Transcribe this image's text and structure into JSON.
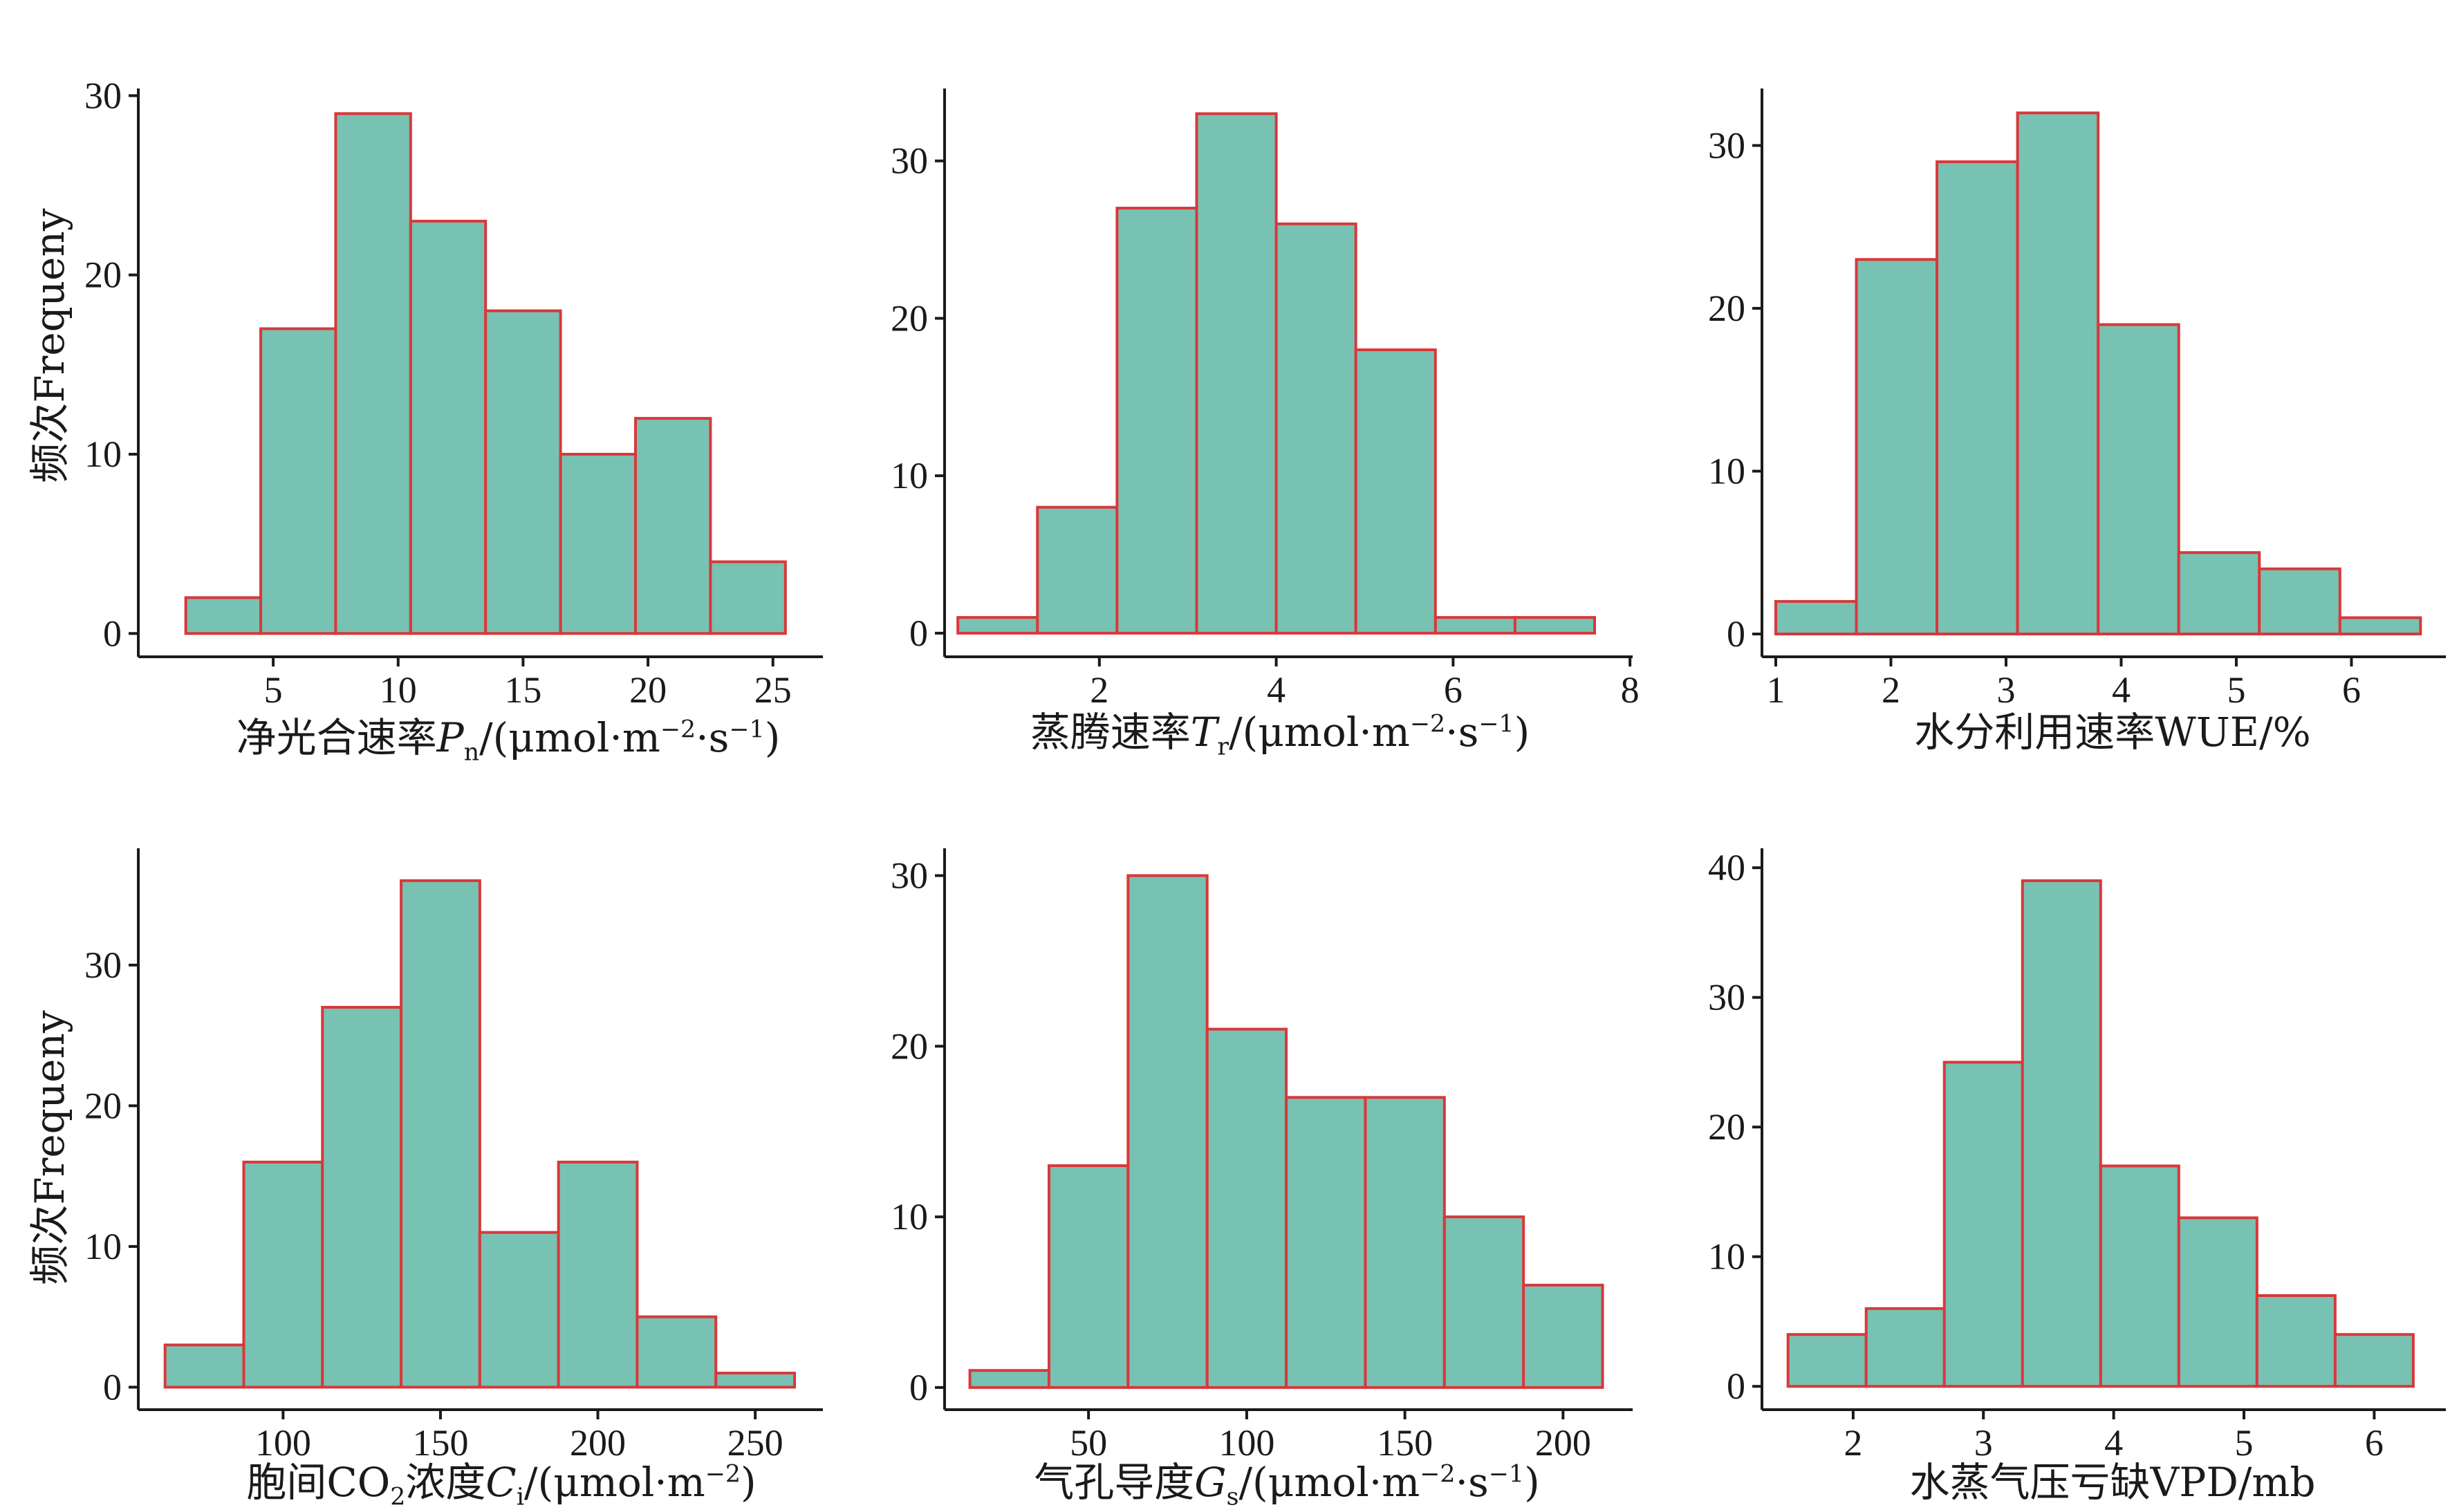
{
  "colors": {
    "bar_fill": "#78c2b4",
    "bar_stroke": "#d9383a",
    "axis": "#1a1a1a"
  },
  "chart_data": [
    {
      "type": "bar",
      "title": "",
      "xlabel": {
        "main": "净光合速率",
        "sym": "P",
        "sub": "n",
        "unit_a": "/(μmol·m",
        "sup1": "−2",
        "unit_b": "·s",
        "sup2": "−1",
        "unit_c": ")"
      },
      "ylabel": "频次Frequeny",
      "categories": [
        "1.5–4.5",
        "4.5–7.5",
        "7.5–10.5",
        "10.5–13.5",
        "13.5–16.5",
        "16.5–19.5",
        "19.5–22.5",
        "22.5–25.5"
      ],
      "bin_edges": [
        1.5,
        4.5,
        7.5,
        10.5,
        13.5,
        16.5,
        19.5,
        22.5,
        25.5
      ],
      "values": [
        2,
        17,
        29,
        23,
        18,
        10,
        12,
        4
      ],
      "xlim": [
        -0.4,
        27
      ],
      "ylim": [
        -1.3,
        30.4
      ],
      "xticks": [
        5,
        10,
        15,
        20,
        25
      ],
      "xtick_labels": [
        "5",
        "10",
        "15",
        "20",
        "25"
      ],
      "yticks": [
        0,
        10,
        20,
        30
      ],
      "ytick_labels": [
        "0",
        "10",
        "20",
        "30"
      ]
    },
    {
      "type": "bar",
      "title": "",
      "xlabel": {
        "main": "蒸腾速率",
        "sym": "T",
        "sub": "r",
        "unit_a": "/(μmol·m",
        "sup1": "−2",
        "unit_b": "·s",
        "sup2": "−1",
        "unit_c": ")"
      },
      "ylabel": "",
      "categories": [
        "0.4–1.3",
        "1.3–2.2",
        "2.2–3.1",
        "3.1–4.0",
        "4.0–4.9",
        "4.9–5.8",
        "5.8–6.7",
        "6.7–7.6"
      ],
      "bin_edges": [
        0.4,
        1.3,
        2.2,
        3.1,
        4.0,
        4.9,
        5.8,
        6.7,
        7.6
      ],
      "values": [
        1,
        8,
        27,
        33,
        26,
        18,
        1,
        1
      ],
      "xlim": [
        0.25,
        8.03
      ],
      "ylim": [
        -1.5,
        34.6
      ],
      "xticks": [
        2,
        4,
        6,
        8
      ],
      "xtick_labels": [
        "2",
        "4",
        "6",
        "8"
      ],
      "yticks": [
        0,
        10,
        20,
        30
      ],
      "ytick_labels": [
        "0",
        "10",
        "20",
        "30"
      ]
    },
    {
      "type": "bar",
      "title": "",
      "xlabel": {
        "main": "水分利用速率WUE/%"
      },
      "ylabel": "",
      "categories": [
        "1.0–1.7",
        "1.7–2.4",
        "2.4–3.1",
        "3.1–3.8",
        "3.8–4.5",
        "4.5–5.2",
        "5.2–5.9",
        "5.9–6.6"
      ],
      "bin_edges": [
        1.0,
        1.7,
        2.4,
        3.1,
        3.8,
        4.5,
        5.2,
        5.9,
        6.6
      ],
      "values": [
        2,
        23,
        29,
        32,
        19,
        5,
        4,
        1
      ],
      "xlim": [
        0.88,
        6.82
      ],
      "ylim": [
        -1.4,
        33.5
      ],
      "xticks": [
        1,
        2,
        3,
        4,
        5,
        6
      ],
      "xtick_labels": [
        "1",
        "2",
        "3",
        "4",
        "5",
        "6"
      ],
      "yticks": [
        0,
        10,
        20,
        30
      ],
      "ytick_labels": [
        "0",
        "10",
        "20",
        "30"
      ]
    },
    {
      "type": "bar",
      "title": "",
      "xlabel": {
        "main": "胞间CO",
        "sub0": "2",
        "main2": "浓度",
        "sym": "C",
        "sub": "i",
        "unit_a": "/(μmol·m",
        "sup1": "−2",
        "unit_c": ")"
      },
      "ylabel": "频次Frequeny",
      "categories": [
        "62.5–87.5",
        "87.5–112.5",
        "112.5–137.5",
        "137.5–162.5",
        "162.5–187.5",
        "187.5–212.5",
        "212.5–237.5",
        "237.5–262.5"
      ],
      "bin_edges": [
        62.5,
        87.5,
        112.5,
        137.5,
        162.5,
        187.5,
        212.5,
        237.5,
        262.5
      ],
      "values": [
        3,
        16,
        27,
        36,
        11,
        16,
        5,
        1
      ],
      "xlim": [
        54,
        271.5
      ],
      "ylim": [
        -1.6,
        38.3
      ],
      "xticks": [
        100,
        150,
        200,
        250
      ],
      "xtick_labels": [
        "100",
        "150",
        "200",
        "250"
      ],
      "yticks": [
        0,
        10,
        20,
        30
      ],
      "ytick_labels": [
        "0",
        "10",
        "20",
        "30"
      ]
    },
    {
      "type": "bar",
      "title": "",
      "xlabel": {
        "main": "气孔导度",
        "sym": "G",
        "sub": "s",
        "unit_a": "/(μmol·m",
        "sup1": "−2",
        "unit_b": "·s",
        "sup2": "−1",
        "unit_c": ")"
      },
      "ylabel": "",
      "categories": [
        "12.5–37.5",
        "37.5–62.5",
        "62.5–87.5",
        "87.5–112.5",
        "112.5–137.5",
        "137.5–162.5",
        "162.5–187.5",
        "187.5–212.5"
      ],
      "bin_edges": [
        12.5,
        37.5,
        62.5,
        87.5,
        112.5,
        137.5,
        162.5,
        187.5,
        212.5
      ],
      "values": [
        1,
        13,
        30,
        21,
        17,
        17,
        10,
        6
      ],
      "xlim": [
        4.5,
        222
      ],
      "ylim": [
        -1.3,
        31.6
      ],
      "xticks": [
        50,
        100,
        150,
        200
      ],
      "xtick_labels": [
        "50",
        "100",
        "150",
        "200"
      ],
      "yticks": [
        0,
        10,
        20,
        30
      ],
      "ytick_labels": [
        "0",
        "10",
        "20",
        "30"
      ]
    },
    {
      "type": "bar",
      "title": "",
      "xlabel": {
        "main": "水蒸气压亏缺VPD/mb"
      },
      "ylabel": "",
      "categories": [
        "1.5–2.1",
        "2.1–2.7",
        "2.7–3.3",
        "3.3–3.9",
        "3.9–4.5",
        "4.5–5.1",
        "5.1–5.7",
        "5.7–6.3"
      ],
      "bin_edges": [
        1.5,
        2.1,
        2.7,
        3.3,
        3.9,
        4.5,
        5.1,
        5.7,
        6.3
      ],
      "values": [
        4,
        6,
        25,
        39,
        17,
        13,
        7,
        4
      ],
      "xlim": [
        1.3,
        6.55
      ],
      "ylim": [
        -1.8,
        41.5
      ],
      "xticks": [
        2,
        3,
        4,
        5,
        6
      ],
      "xtick_labels": [
        "2",
        "3",
        "4",
        "5",
        "6"
      ],
      "yticks": [
        0,
        10,
        20,
        30,
        40
      ],
      "ytick_labels": [
        "0",
        "10",
        "20",
        "30",
        "40"
      ]
    }
  ]
}
